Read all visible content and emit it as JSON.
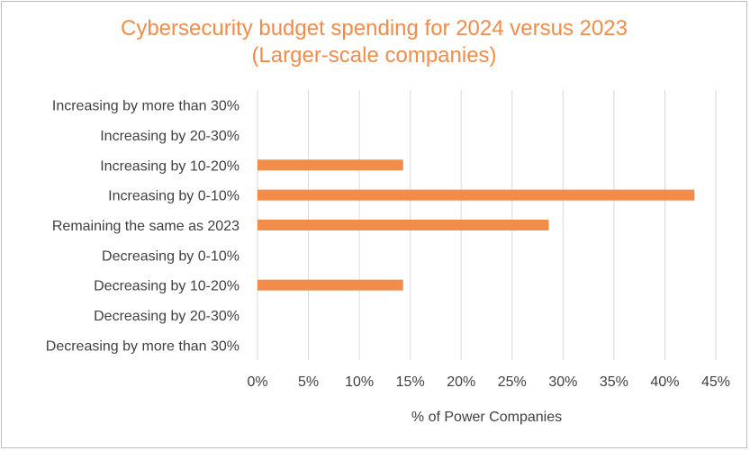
{
  "chart_data": {
    "type": "bar",
    "orientation": "horizontal",
    "title_lines": [
      "Cybersecurity budget spending for 2024 versus 2023",
      "(Larger-scale companies)"
    ],
    "categories": [
      "Increasing by more than 30%",
      "Increasing by 20-30%",
      "Increasing by 10-20%",
      "Increasing by 0-10%",
      "Remaining the same as 2023",
      "Decreasing by 0-10%",
      "Decreasing by 10-20%",
      "Decreasing by 20-30%",
      "Decreasing by more than 30%"
    ],
    "values": [
      0,
      0,
      14.3,
      42.9,
      28.6,
      0,
      14.3,
      0,
      0
    ],
    "xlabel": "% of Power Companies",
    "ylabel": "",
    "xlim": [
      0,
      45
    ],
    "x_ticks": [
      0,
      5,
      10,
      15,
      20,
      25,
      30,
      35,
      40,
      45
    ],
    "x_tick_labels": [
      "0%",
      "5%",
      "10%",
      "15%",
      "20%",
      "25%",
      "30%",
      "35%",
      "40%",
      "45%"
    ],
    "grid": "vertical",
    "legend": "none",
    "colors": {
      "bar": "#f28c4a",
      "title": "#f28c4a",
      "grid": "#d9d9d9",
      "text": "#404040",
      "border": "#bfbfbf"
    }
  }
}
